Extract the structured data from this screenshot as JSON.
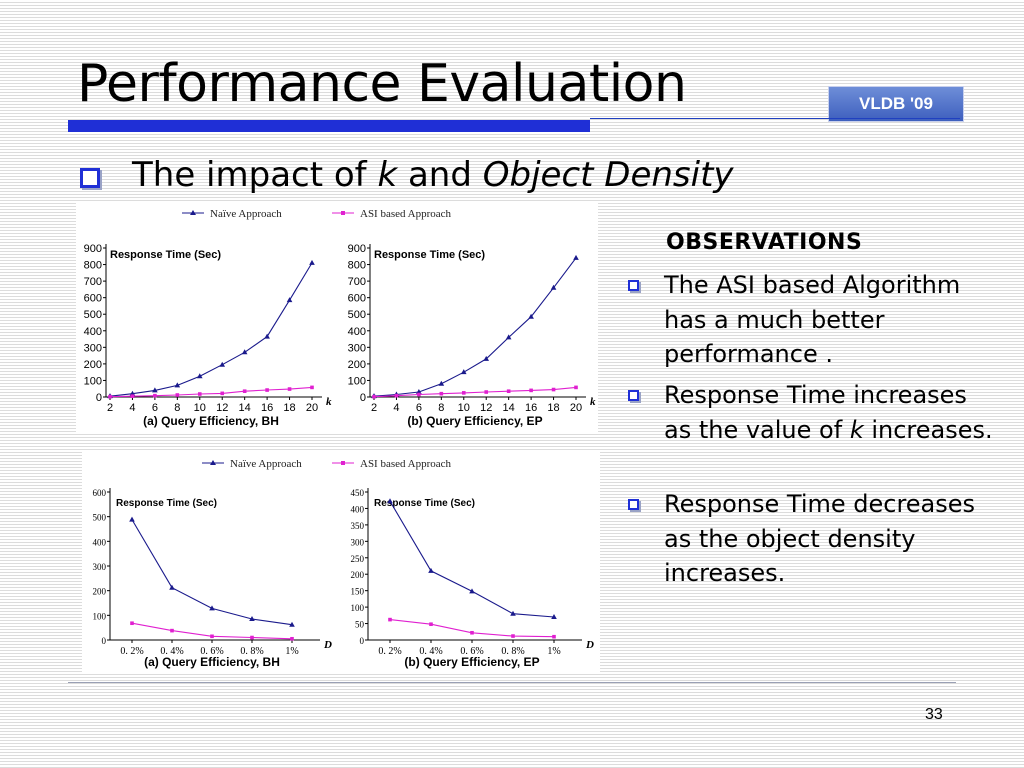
{
  "slide": {
    "title": "Performance Evaluation",
    "badge": "VLDB '09",
    "subtitle": {
      "pre": "The impact of ",
      "k": "k",
      "mid": " and ",
      "density": "Object Density"
    },
    "page_number": "33"
  },
  "observations": {
    "heading": "OBSERVATIONS",
    "items": [
      {
        "parts": [
          "The ASI based Algorithm has a much better performance ."
        ]
      },
      {
        "parts": [
          "Response Time increases as the value of ",
          "k",
          " increases."
        ]
      },
      {
        "parts": [
          "Response Time decreases as the object density increases."
        ]
      }
    ]
  },
  "legend": {
    "naive": "Naïve Approach",
    "asi": "ASI based Approach"
  },
  "colors": {
    "naive": "#1a1a8c",
    "asi": "#e020d0",
    "accent": "#1f2fd6"
  },
  "chart_data": [
    {
      "type": "line",
      "title": "(a) Query Efficiency, BH",
      "ylabel": "Response Time (Sec)",
      "xlabel": "k",
      "x": [
        2,
        4,
        6,
        8,
        10,
        12,
        14,
        16,
        18,
        20
      ],
      "x_ticks": [
        "2",
        "4",
        "6",
        "8",
        "10",
        "12",
        "14",
        "16",
        "18",
        "20"
      ],
      "ylim": [
        0,
        900
      ],
      "y_ticks": [
        "0",
        "100",
        "200",
        "300",
        "400",
        "500",
        "600",
        "700",
        "800",
        "900"
      ],
      "series": [
        {
          "name": "Naïve Approach",
          "values": [
            5,
            20,
            40,
            70,
            125,
            195,
            270,
            365,
            585,
            810
          ]
        },
        {
          "name": "ASI based Approach",
          "values": [
            2,
            5,
            8,
            12,
            18,
            22,
            35,
            42,
            48,
            58
          ]
        }
      ]
    },
    {
      "type": "line",
      "title": "(b) Query Efficiency, EP",
      "ylabel": "Response Time (Sec)",
      "xlabel": "k",
      "x": [
        2,
        4,
        6,
        8,
        10,
        12,
        14,
        16,
        18,
        20
      ],
      "x_ticks": [
        "2",
        "4",
        "6",
        "8",
        "10",
        "12",
        "14",
        "16",
        "18",
        "20"
      ],
      "ylim": [
        0,
        900
      ],
      "y_ticks": [
        "0",
        "100",
        "200",
        "300",
        "400",
        "500",
        "600",
        "700",
        "800",
        "900"
      ],
      "series": [
        {
          "name": "Naïve Approach",
          "values": [
            5,
            15,
            30,
            80,
            150,
            230,
            360,
            485,
            660,
            840
          ]
        },
        {
          "name": "ASI based Approach",
          "values": [
            2,
            8,
            15,
            20,
            25,
            30,
            35,
            40,
            45,
            58
          ]
        }
      ]
    },
    {
      "type": "line",
      "title": "(a) Query Efficiency, BH",
      "ylabel": "Response Time (Sec)",
      "xlabel": "D",
      "x": [
        0.2,
        0.4,
        0.6,
        0.8,
        1.0
      ],
      "x_ticks": [
        "0. 2%",
        "0. 4%",
        "0. 6%",
        "0. 8%",
        "1%"
      ],
      "ylim": [
        0,
        600
      ],
      "y_ticks": [
        "0",
        "100",
        "200",
        "300",
        "400",
        "500",
        "600"
      ],
      "series": [
        {
          "name": "Naïve Approach",
          "values": [
            488,
            212,
            128,
            85,
            62
          ]
        },
        {
          "name": "ASI based Approach",
          "values": [
            68,
            38,
            15,
            10,
            5
          ]
        }
      ]
    },
    {
      "type": "line",
      "title": "(b) Query Efficiency, EP",
      "ylabel": "Response Time (Sec)",
      "xlabel": "D",
      "x": [
        0.2,
        0.4,
        0.6,
        0.8,
        1.0
      ],
      "x_ticks": [
        "0. 2%",
        "0. 4%",
        "0. 6%",
        "0. 8%",
        "1%"
      ],
      "ylim": [
        0,
        450
      ],
      "y_ticks": [
        "0",
        "50",
        "100",
        "150",
        "200",
        "250",
        "300",
        "350",
        "400",
        "450"
      ],
      "series": [
        {
          "name": "Naïve Approach",
          "values": [
            422,
            210,
            148,
            80,
            70
          ]
        },
        {
          "name": "ASI based Approach",
          "values": [
            62,
            48,
            22,
            12,
            10
          ]
        }
      ]
    }
  ]
}
